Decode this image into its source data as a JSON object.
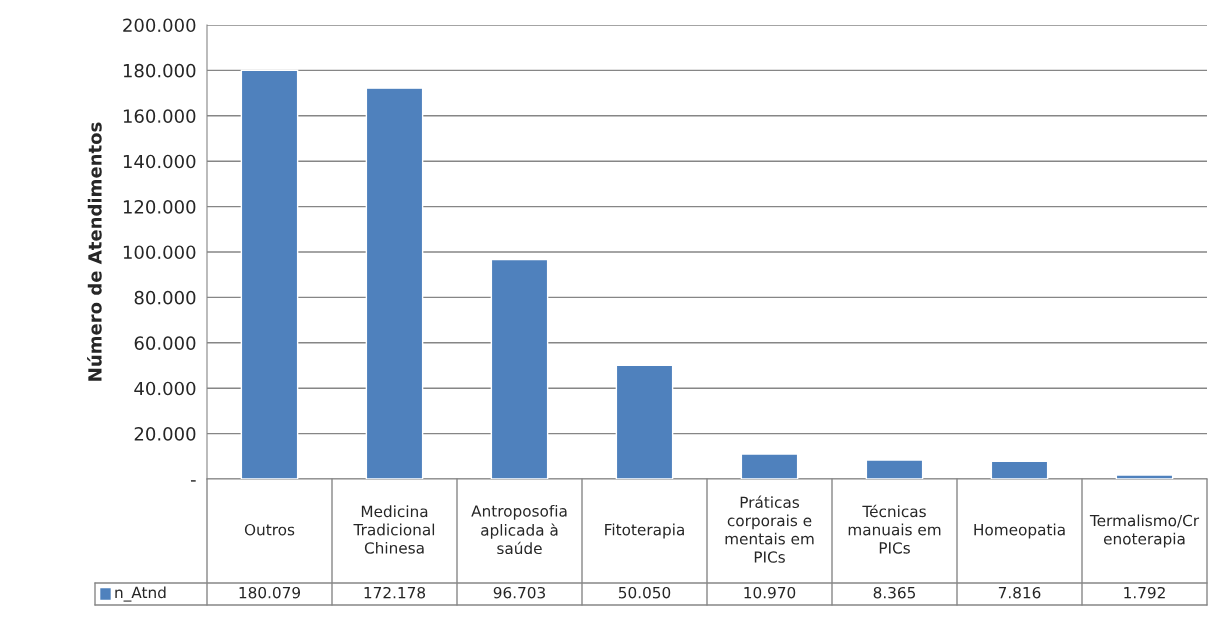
{
  "chart_data": {
    "type": "bar",
    "ylabel": "Número de Atendimentos",
    "categories": [
      "Outros",
      "Medicina Tradicional Chinesa",
      "Antroposofia aplicada à saúde",
      "Fitoterapia",
      "Práticas corporais e mentais em PICs",
      "Técnicas manuais em PICs",
      "Homeopatia",
      "Termalismo/Crenoterapia"
    ],
    "series": [
      {
        "name": "n_Atnd",
        "color": "#4f81bd",
        "values": [
          180079,
          172178,
          96703,
          50050,
          10970,
          8365,
          7816,
          1792
        ],
        "value_labels": [
          "180.079",
          "172.178",
          "96.703",
          "50.050",
          "10.970",
          "8.365",
          "7.816",
          "1.792"
        ]
      }
    ],
    "ylim": [
      0,
      200000
    ],
    "yticks": [
      {
        "value": 0,
        "label": "-"
      },
      {
        "value": 20000,
        "label": "20.000"
      },
      {
        "value": 40000,
        "label": "40.000"
      },
      {
        "value": 60000,
        "label": "60.000"
      },
      {
        "value": 80000,
        "label": "80.000"
      },
      {
        "value": 100000,
        "label": "100.000"
      },
      {
        "value": 120000,
        "label": "120.000"
      },
      {
        "value": 140000,
        "label": "140.000"
      },
      {
        "value": 160000,
        "label": "160.000"
      },
      {
        "value": 180000,
        "label": "180.000"
      },
      {
        "value": 200000,
        "label": "200.000"
      }
    ],
    "grid": "y",
    "legend": "bottom"
  }
}
